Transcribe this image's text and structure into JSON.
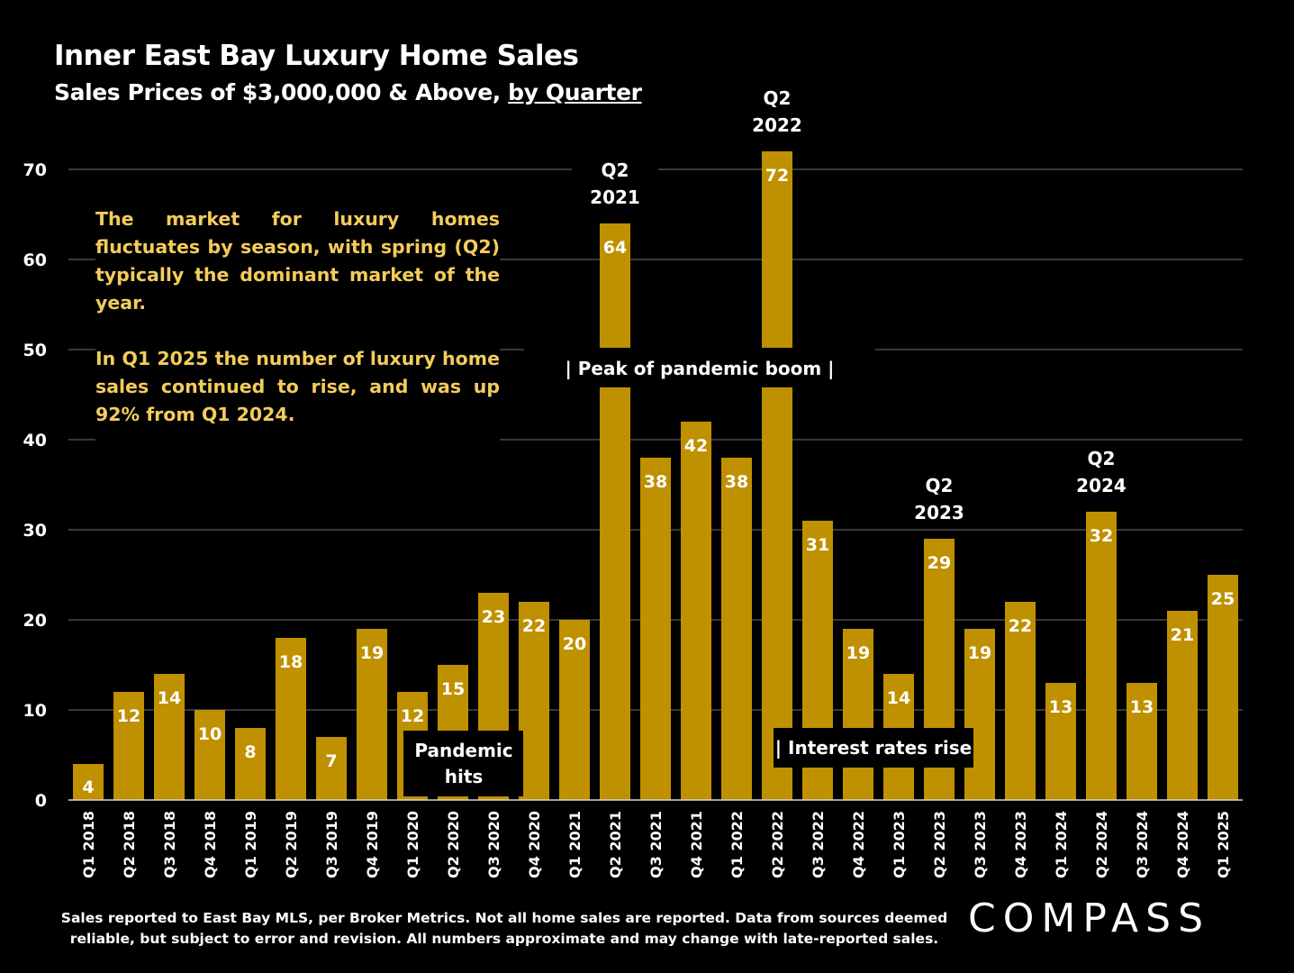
{
  "title": "Inner East Bay Luxury Home Sales",
  "subtitle_main": "Sales Prices of $3,000,000 & Above,",
  "subtitle_emph": "by Quarter",
  "commentary": [
    "The market for luxury homes fluctuates by season, with spring (Q2) typically the dominant market of the year.",
    "In Q1 2025 the number of luxury home sales continued to rise, and was up 92% from Q1 2024."
  ],
  "footnote": "Sales reported to East Bay MLS, per Broker Metrics. Not all home sales are reported. Data from sources deemed reliable, but subject to error and revision. All numbers approximate and may change with late-reported sales.",
  "logo_text": "COMPASS",
  "colors": {
    "bar": "#bf9000",
    "accent_text": "#f3cc5c",
    "background": "#000000",
    "grid": "#595959"
  },
  "chart_data": {
    "type": "bar",
    "categories": [
      "Q1 2018",
      "Q2 2018",
      "Q3 2018",
      "Q4 2018",
      "Q1 2019",
      "Q2 2019",
      "Q3 2019",
      "Q4 2019",
      "Q1 2020",
      "Q2 2020",
      "Q3 2020",
      "Q4 2020",
      "Q1 2021",
      "Q2 2021",
      "Q3 2021",
      "Q4 2021",
      "Q1 2022",
      "Q2 2022",
      "Q3 2022",
      "Q4 2022",
      "Q1 2023",
      "Q2 2023",
      "Q3 2023",
      "Q4 2023",
      "Q1 2024",
      "Q2 2024",
      "Q3 2024",
      "Q4 2024",
      "Q1 2025"
    ],
    "values": [
      4,
      12,
      14,
      10,
      8,
      18,
      7,
      19,
      12,
      15,
      23,
      22,
      20,
      64,
      38,
      42,
      38,
      72,
      31,
      19,
      14,
      29,
      19,
      22,
      13,
      32,
      13,
      21,
      25
    ],
    "ylim": [
      0,
      70
    ],
    "yticks": [
      0,
      10,
      20,
      30,
      40,
      50,
      60,
      70
    ],
    "grid": true,
    "annotations": [
      {
        "category": "Q2 2021",
        "lines": [
          "Q2",
          "2021"
        ]
      },
      {
        "category": "Q2 2022",
        "lines": [
          "Q2",
          "2022"
        ]
      },
      {
        "category": "Q2 2023",
        "lines": [
          "Q2",
          "2023"
        ]
      },
      {
        "category": "Q2 2024",
        "lines": [
          "Q2",
          "2024"
        ]
      }
    ],
    "callouts": [
      {
        "text": "|   Peak of pandemic boom   |"
      },
      {
        "lines": [
          "Pandemic",
          "hits"
        ]
      },
      {
        "text": "| Interest rates rise"
      }
    ]
  }
}
